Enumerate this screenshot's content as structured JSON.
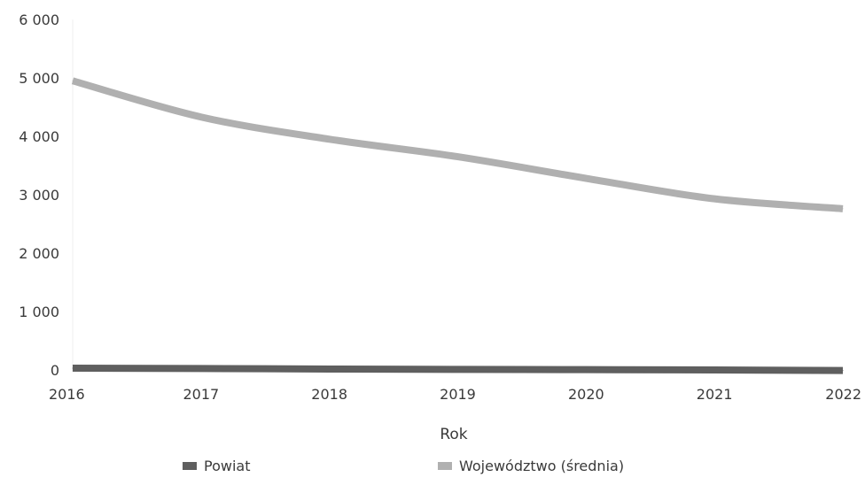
{
  "chart_data": {
    "type": "line",
    "x": [
      "2016",
      "2017",
      "2018",
      "2019",
      "2020",
      "2021",
      "2022"
    ],
    "xlabel": "Rok",
    "ylabel": "",
    "ylim": [
      0,
      6000
    ],
    "y_ticks": [
      "0",
      "1 000",
      "2 000",
      "3 000",
      "4 000",
      "5 000",
      "6 000"
    ],
    "grid": false,
    "legend_position": "bottom",
    "series": [
      {
        "name": "Powiat",
        "color": "#5f5f5f",
        "values": [
          30,
          25,
          15,
          10,
          5,
          0,
          -10
        ]
      },
      {
        "name": "Województwo (średnia)",
        "color": "#b0b0b0",
        "values": [
          4950,
          4330,
          3950,
          3650,
          3280,
          2930,
          2760
        ]
      }
    ]
  }
}
